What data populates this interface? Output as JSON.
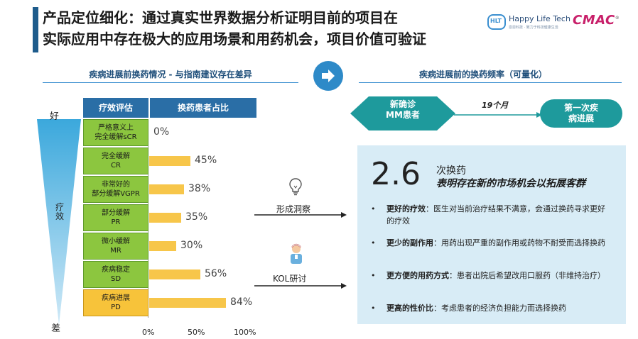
{
  "header": {
    "title_line1": "产品定位细化：通过真实世界数据分析证明目前的项目在",
    "title_line2": "实际应用中存在极大的应用场景和用药机会，项目价值可验证",
    "logo_hlt_text": "Happy Life Tech",
    "logo_hlt_sub": "恩恩科技 · 致力于科技健康生活",
    "logo_hlt_mark": "HLT",
    "logo_cmac_text": "CMAC",
    "logo_cmac_mark": "®"
  },
  "left_section": {
    "heading": "疾病进展前换药情况 - 与指南建议存在差异",
    "scale_top": "好",
    "scale_bottom": "差",
    "scale_axis": "疗效",
    "col_eval": "疗效评估",
    "col_ratio": "换药患者占比",
    "rows": [
      {
        "line1": "严格意义上",
        "line2": "完全缓解sCR",
        "value": 0,
        "label": "0%"
      },
      {
        "line1": "完全缓解",
        "line2": "CR",
        "value": 45,
        "label": "45%"
      },
      {
        "line1": "非常好的",
        "line2": "部分缓解VGPR",
        "value": 38,
        "label": "38%"
      },
      {
        "line1": "部分缓解",
        "line2": "PR",
        "value": 35,
        "label": "35%"
      },
      {
        "line1": "微小缓解",
        "line2": "MR",
        "value": 30,
        "label": "30%"
      },
      {
        "line1": "疾病稳定",
        "line2": "SD",
        "value": 56,
        "label": "56%"
      },
      {
        "line1": "疾病进展",
        "line2": "PD",
        "value": 84,
        "label": "84%"
      }
    ],
    "axis_ticks": [
      "0%",
      "50%",
      "100%"
    ]
  },
  "middle": {
    "insight_label": "形成洞察",
    "kol_label": "KOL研讨",
    "bulb_icon": "lightbulb-icon",
    "doctor_icon": "doctor-icon",
    "arrow_icon": "arrow-right-icon"
  },
  "right_section": {
    "heading": "疾病进展前的换药频率（可量化）",
    "flow_start_line1": "新确诊",
    "flow_start_line2": "MM患者",
    "flow_duration": "19个月",
    "flow_end_line1": "第一次疾",
    "flow_end_line2": "病进展",
    "big_number": "2.6",
    "switch_label": "次换药",
    "market_label": "表明存在新的市场机会以拓展客群",
    "bullet_glyph": "•",
    "bullets": [
      {
        "bold": "更好的疗效",
        "text": "：医生对当前治疗结果不满意，会通过换药寻求更好的疗效"
      },
      {
        "bold": "更少的副作用",
        "text": "：用药出现严重的副作用或药物不耐受而选择换药"
      },
      {
        "bold": "更方便的用药方式",
        "text": "：患者出院后希望改用口服药（非维持治疗）"
      },
      {
        "bold": "更高的性价比",
        "text": "：考虑患者的经济负担能力而选择换药"
      }
    ]
  },
  "colors": {
    "brand_blue": "#2a6ea6",
    "green_cell": "#8cc63f",
    "yellow_bar": "#f7c64a",
    "teal": "#1e9a9c",
    "panel_bg": "#d8ecf6"
  }
}
